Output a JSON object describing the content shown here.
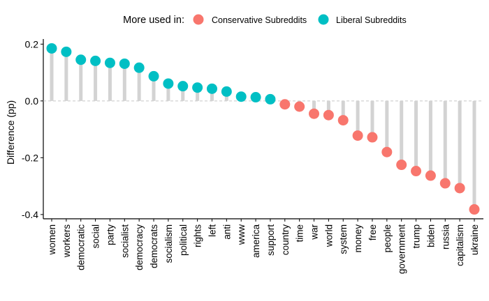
{
  "legend": {
    "title": "More used in:",
    "items": [
      {
        "label": "Conservative Subreddits",
        "color": "#F8766D"
      },
      {
        "label": "Liberal Subreddits",
        "color": "#00BFC4"
      }
    ]
  },
  "chart_data": {
    "type": "lollipop",
    "ylabel": "Difference (pp)",
    "xlabel": "",
    "ylim": [
      -0.4,
      0.2
    ],
    "yticks": [
      0.2,
      0.0,
      -0.2,
      -0.4
    ],
    "ytick_labels": [
      "0.2",
      "0.0",
      "-0.2",
      "-0.4"
    ],
    "legend_position": "top",
    "grid": false,
    "zero_line": "dashed",
    "stem_color": "#D3D3D3",
    "categories": [
      "women",
      "workers",
      "democratic",
      "social",
      "party",
      "socialist",
      "democracy",
      "democrats",
      "socialism",
      "political",
      "rights",
      "left",
      "anti",
      "www",
      "america",
      "support",
      "country",
      "time",
      "war",
      "world",
      "system",
      "money",
      "free",
      "people",
      "government",
      "trump",
      "biden",
      "russia",
      "capitalism",
      "ukraine"
    ],
    "values": [
      0.185,
      0.173,
      0.145,
      0.141,
      0.134,
      0.131,
      0.117,
      0.087,
      0.061,
      0.052,
      0.047,
      0.043,
      0.033,
      0.015,
      0.013,
      0.006,
      -0.012,
      -0.02,
      -0.045,
      -0.05,
      -0.068,
      -0.122,
      -0.128,
      -0.18,
      -0.225,
      -0.247,
      -0.263,
      -0.29,
      -0.307,
      -0.382
    ],
    "groups": [
      "Liberal Subreddits",
      "Liberal Subreddits",
      "Liberal Subreddits",
      "Liberal Subreddits",
      "Liberal Subreddits",
      "Liberal Subreddits",
      "Liberal Subreddits",
      "Liberal Subreddits",
      "Liberal Subreddits",
      "Liberal Subreddits",
      "Liberal Subreddits",
      "Liberal Subreddits",
      "Liberal Subreddits",
      "Liberal Subreddits",
      "Liberal Subreddits",
      "Liberal Subreddits",
      "Conservative Subreddits",
      "Conservative Subreddits",
      "Conservative Subreddits",
      "Conservative Subreddits",
      "Conservative Subreddits",
      "Conservative Subreddits",
      "Conservative Subreddits",
      "Conservative Subreddits",
      "Conservative Subreddits",
      "Conservative Subreddits",
      "Conservative Subreddits",
      "Conservative Subreddits",
      "Conservative Subreddits",
      "Conservative Subreddits"
    ]
  }
}
